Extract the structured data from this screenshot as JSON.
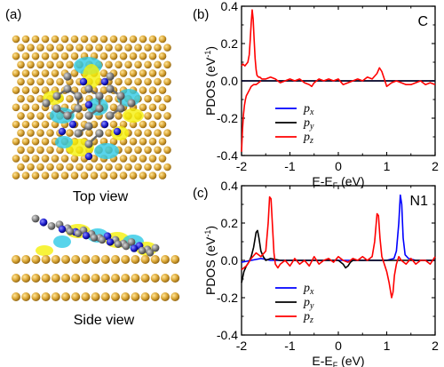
{
  "figure": {
    "panel_a": {
      "label": "(a)",
      "top_caption": "Top view",
      "side_caption": "Side view"
    },
    "panel_b": {
      "label": "(b)",
      "tag": "C"
    },
    "panel_c": {
      "label": "(c)",
      "tag": "N1"
    }
  },
  "colors": {
    "px": "#0000ff",
    "py": "#000000",
    "pz": "#ff0000",
    "substrate_atom": "#d4a236",
    "carbon_atom": "#808080",
    "nitrogen_atom": "#1c1ccc",
    "charge_yellow": "#f5f00a",
    "charge_cyan": "#2ec9e6"
  },
  "chart_data": [
    {
      "type": "line",
      "panel": "(b)",
      "annotation": "C",
      "xlabel": "E-E",
      "xlabel_sub": "F",
      "xlabel_unit": " (eV)",
      "ylabel": "PDOS (eV",
      "ylabel_sup": "-1",
      "ylabel_close": ")",
      "xlim": [
        -2,
        2
      ],
      "ylim": [
        -0.4,
        0.4
      ],
      "xticks": [
        -2,
        -1,
        0,
        1,
        2
      ],
      "xtick_labels": [
        "-2",
        "-1",
        "0",
        "1",
        "2"
      ],
      "yticks": [
        -0.4,
        -0.2,
        0.0,
        0.2,
        0.4
      ],
      "ytick_labels": [
        "-0.4",
        "-0.2",
        "0.0",
        "0.2",
        "0.4"
      ],
      "legend_position": "bottom-left",
      "series": [
        {
          "name": "p",
          "sub": "x",
          "color": "#0000ff",
          "x": [
            -2,
            2
          ],
          "y": [
            0.0,
            0.0
          ]
        },
        {
          "name": "p",
          "sub": "y",
          "color": "#000000",
          "x": [
            -2,
            2
          ],
          "y": [
            0.0,
            0.0
          ]
        },
        {
          "name": "p",
          "sub": "z",
          "color": "#ff0000",
          "x": [
            -2.0,
            -1.97,
            -1.93,
            -1.9,
            -1.87,
            -1.84,
            -1.82,
            -1.8,
            -1.78,
            -1.76,
            -1.74,
            -1.72,
            -1.7,
            -1.68,
            -1.65,
            -1.62,
            -1.58,
            -1.5,
            -1.4,
            -1.3,
            -1.2,
            -1.1,
            -1.0,
            -0.9,
            -0.8,
            -0.7,
            -0.6,
            -0.55,
            -0.5,
            -0.4,
            -0.3,
            -0.2,
            -0.1,
            0.0,
            0.1,
            0.2,
            0.3,
            0.4,
            0.5,
            0.6,
            0.7,
            0.8,
            0.85,
            0.9,
            0.95,
            1.0,
            1.1,
            1.2,
            1.3,
            1.4,
            1.5,
            1.6,
            1.7,
            1.8,
            1.9,
            2.0
          ],
          "y": [
            0.08,
            0.09,
            0.08,
            0.09,
            0.1,
            0.14,
            0.22,
            0.31,
            0.38,
            0.33,
            0.22,
            0.12,
            0.06,
            0.03,
            0.02,
            0.02,
            0.01,
            0.01,
            0.02,
            0.01,
            -0.01,
            0.0,
            0.01,
            0.0,
            0.01,
            -0.01,
            -0.02,
            -0.03,
            -0.01,
            0.01,
            0.0,
            0.01,
            0.0,
            0.01,
            -0.02,
            -0.01,
            0.0,
            0.01,
            0.0,
            0.02,
            0.01,
            0.04,
            0.07,
            0.05,
            0.01,
            -0.03,
            -0.01,
            0.0,
            -0.01,
            -0.02,
            -0.02,
            -0.01,
            0.0,
            -0.02,
            -0.01,
            -0.02
          ]
        },
        {
          "name": "",
          "sub": "",
          "color": "#ff0000",
          "x": [
            -2.0,
            -1.98,
            -1.96,
            -1.94,
            -1.92,
            -1.9,
            -1.88,
            -1.86,
            -1.84,
            -1.82,
            -1.8,
            -1.75,
            -1.7,
            -1.65,
            -1.6
          ],
          "y": [
            -0.38,
            -0.26,
            -0.18,
            -0.13,
            -0.1,
            -0.08,
            -0.07,
            -0.06,
            -0.05,
            -0.04,
            -0.03,
            -0.02,
            -0.02,
            -0.01,
            0.0
          ]
        }
      ]
    },
    {
      "type": "line",
      "panel": "(c)",
      "annotation": "N1",
      "xlabel": "E-E",
      "xlabel_sub": "F",
      "xlabel_unit": " (eV)",
      "ylabel": "PDOS (eV",
      "ylabel_sup": "-1",
      "ylabel_close": ")",
      "xlim": [
        -2,
        2
      ],
      "ylim": [
        -0.4,
        0.4
      ],
      "xticks": [
        -2,
        -1,
        0,
        1,
        2
      ],
      "xtick_labels": [
        "-2",
        "-1",
        "0",
        "1",
        "2"
      ],
      "yticks": [
        -0.4,
        -0.2,
        0.0,
        0.2,
        0.4
      ],
      "ytick_labels": [
        "-0.4",
        "-0.2",
        "0.0",
        "0.2",
        "0.4"
      ],
      "legend_position": "bottom-left",
      "series": [
        {
          "name": "p",
          "sub": "x",
          "color": "#0000ff",
          "x": [
            -2.0,
            -1.8,
            -1.6,
            -1.4,
            -1.2,
            -1.0,
            -0.5,
            0.0,
            0.5,
            1.0,
            1.15,
            1.2,
            1.25,
            1.28,
            1.31,
            1.34,
            1.38,
            1.45,
            1.6,
            2.0
          ],
          "y": [
            -0.01,
            0.0,
            0.01,
            0.0,
            0.0,
            0.0,
            0.0,
            0.0,
            0.0,
            0.0,
            0.01,
            0.05,
            0.2,
            0.35,
            0.3,
            0.12,
            0.03,
            0.01,
            0.0,
            0.0
          ]
        },
        {
          "name": "p",
          "sub": "y",
          "color": "#000000",
          "x": [
            -2.0,
            -1.95,
            -1.9,
            -1.85,
            -1.8,
            -1.75,
            -1.7,
            -1.67,
            -1.64,
            -1.6,
            -1.55,
            -1.5,
            -1.4,
            -1.2,
            -1.0,
            -0.5,
            0.0,
            0.1,
            0.15,
            0.2,
            0.25,
            0.3,
            0.5,
            1.0,
            2.0
          ],
          "y": [
            -0.12,
            -0.06,
            -0.03,
            -0.01,
            0.02,
            0.07,
            0.15,
            0.16,
            0.12,
            0.05,
            0.02,
            0.0,
            0.01,
            0.0,
            0.0,
            0.0,
            0.0,
            -0.02,
            -0.04,
            -0.03,
            -0.01,
            0.0,
            0.0,
            0.0,
            0.0
          ]
        },
        {
          "name": "p",
          "sub": "z",
          "color": "#ff0000",
          "x": [
            -2.0,
            -1.9,
            -1.8,
            -1.7,
            -1.6,
            -1.5,
            -1.45,
            -1.42,
            -1.39,
            -1.36,
            -1.33,
            -1.3,
            -1.25,
            -1.2,
            -1.1,
            -1.0,
            -0.9,
            -0.8,
            -0.7,
            -0.6,
            -0.5,
            -0.4,
            -0.3,
            -0.2,
            -0.1,
            0.0,
            0.1,
            0.2,
            0.3,
            0.4,
            0.5,
            0.6,
            0.7,
            0.75,
            0.8,
            0.83,
            0.86,
            0.9,
            0.95,
            1.0,
            1.05,
            1.1,
            1.13,
            1.16,
            1.2,
            1.25,
            1.3,
            1.4,
            1.5,
            1.6,
            1.7,
            1.8,
            1.9,
            2.0
          ],
          "y": [
            -0.05,
            -0.03,
            0.01,
            0.04,
            0.02,
            0.05,
            0.2,
            0.34,
            0.33,
            0.18,
            0.04,
            -0.02,
            -0.04,
            -0.02,
            0.0,
            -0.03,
            0.01,
            -0.02,
            0.0,
            -0.03,
            0.02,
            -0.02,
            0.0,
            0.01,
            -0.01,
            0.02,
            0.0,
            -0.01,
            0.01,
            0.0,
            0.02,
            0.0,
            0.02,
            0.1,
            0.25,
            0.24,
            0.12,
            0.02,
            -0.02,
            -0.06,
            -0.12,
            -0.2,
            -0.17,
            -0.08,
            -0.02,
            0.02,
            0.0,
            -0.02,
            0.01,
            -0.02,
            0.0,
            0.0,
            -0.02,
            0.02
          ]
        }
      ]
    }
  ]
}
